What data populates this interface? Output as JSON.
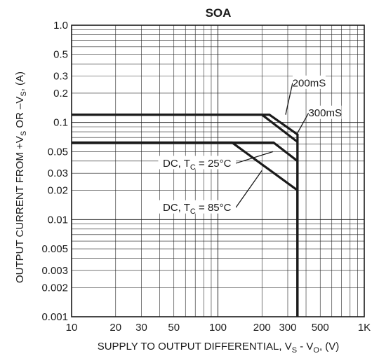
{
  "chart_data": {
    "type": "line",
    "title": "SOA",
    "xlabel": "SUPPLY TO OUTPUT DIFFERENTIAL, V",
    "xlabel_sub1": "S",
    "xlabel_mid": " - V",
    "xlabel_sub2": "O",
    "xlabel_tail": ", (V)",
    "ylabel": "OUTPUT CURRENT FROM +V",
    "ylabel_sub1": "S",
    "ylabel_mid": " OR –V",
    "ylabel_sub2": "S",
    "ylabel_tail": ", (A)",
    "x_scale": "log",
    "y_scale": "log",
    "xlim": [
      10,
      1000
    ],
    "ylim": [
      0.001,
      1.0
    ],
    "grid": true,
    "x_ticks": [
      {
        "v": 10,
        "label": "10"
      },
      {
        "v": 20,
        "label": "20"
      },
      {
        "v": 30,
        "label": "30"
      },
      {
        "v": 50,
        "label": "50"
      },
      {
        "v": 100,
        "label": "100"
      },
      {
        "v": 200,
        "label": "200"
      },
      {
        "v": 300,
        "label": "300"
      },
      {
        "v": 500,
        "label": "500"
      },
      {
        "v": 1000,
        "label": "1K"
      }
    ],
    "y_ticks": [
      {
        "v": 1.0,
        "label": "1.0"
      },
      {
        "v": 0.5,
        "label": "0.5"
      },
      {
        "v": 0.3,
        "label": "0.3"
      },
      {
        "v": 0.2,
        "label": "0.2"
      },
      {
        "v": 0.1,
        "label": "0.1"
      },
      {
        "v": 0.05,
        "label": "0.05"
      },
      {
        "v": 0.03,
        "label": "0.03"
      },
      {
        "v": 0.02,
        "label": "0.02"
      },
      {
        "v": 0.01,
        "label": "0.01"
      },
      {
        "v": 0.005,
        "label": "0.005"
      },
      {
        "v": 0.003,
        "label": "0.003"
      },
      {
        "v": 0.002,
        "label": "0.002"
      },
      {
        "v": 0.001,
        "label": "0.001"
      }
    ],
    "series": [
      {
        "name": "200mS",
        "points": [
          [
            10,
            0.12
          ],
          [
            225,
            0.12
          ],
          [
            350,
            0.075
          ],
          [
            350,
            0.001
          ]
        ]
      },
      {
        "name": "300mS",
        "points": [
          [
            10,
            0.12
          ],
          [
            200,
            0.12
          ],
          [
            350,
            0.063
          ],
          [
            350,
            0.001
          ]
        ]
      },
      {
        "name": "DC, TC = 25°C",
        "points": [
          [
            10,
            0.062
          ],
          [
            240,
            0.062
          ],
          [
            350,
            0.04
          ],
          [
            350,
            0.001
          ]
        ]
      },
      {
        "name": "DC, TC = 85°C",
        "points": [
          [
            10,
            0.062
          ],
          [
            125,
            0.062
          ],
          [
            350,
            0.02
          ],
          [
            350,
            0.001
          ]
        ]
      }
    ],
    "annotations": [
      {
        "label": "200mS",
        "label_x": 420,
        "label_y": 0.255,
        "target": [
          290,
          0.12
        ]
      },
      {
        "label": "300mS",
        "label_x": 540,
        "label_y": 0.125,
        "target": [
          345,
          0.075
        ]
      },
      {
        "label_main": "DC, T",
        "label_sub": "C",
        "label_tail": " = 25°C",
        "label_x": 72,
        "label_y": 0.038,
        "target": [
          238,
          0.05
        ]
      },
      {
        "label_main": "DC, T",
        "label_sub": "C",
        "label_tail": " = 85°C",
        "label_x": 72,
        "label_y": 0.0133,
        "target": [
          200,
          0.032
        ]
      }
    ]
  }
}
